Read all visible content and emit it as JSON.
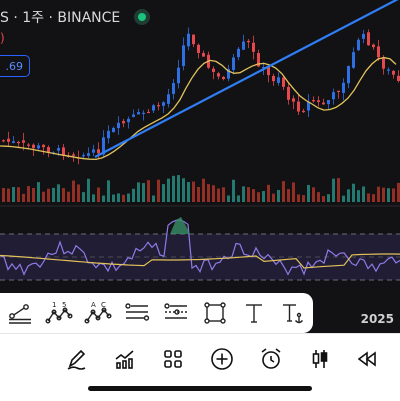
{
  "header": {
    "title": "S · 1주 · BINANCE",
    "change": ")",
    "price_tag": ".69"
  },
  "timeline": {
    "year_label": "2025"
  },
  "drawing_tools": [
    {
      "name": "trend-line-tool",
      "icon": "trend-line-icon"
    },
    {
      "name": "wave-15-tool",
      "icon": "elliott-wave-icon",
      "label_a": "1",
      "label_b": "5"
    },
    {
      "name": "pattern-ac-tool",
      "icon": "abcd-pattern-icon",
      "label_a": "A",
      "label_b": "C"
    },
    {
      "name": "fib-retracement-tool",
      "icon": "fib-retracement-icon"
    },
    {
      "name": "fib-channel-tool",
      "icon": "fib-channel-icon"
    },
    {
      "name": "rectangle-tool",
      "icon": "rectangle-icon"
    },
    {
      "name": "text-tool",
      "icon": "text-icon"
    },
    {
      "name": "anchored-text-tool",
      "icon": "anchored-text-icon"
    }
  ],
  "bottom_tools": [
    {
      "name": "draw-pen-button",
      "icon": "pen-icon"
    },
    {
      "name": "indicators-button",
      "icon": "chart-indicator-icon"
    },
    {
      "name": "layouts-button",
      "icon": "grid-icon"
    },
    {
      "name": "add-button",
      "icon": "plus-circle-icon"
    },
    {
      "name": "alert-button",
      "icon": "alarm-clock-icon"
    },
    {
      "name": "chart-type-button",
      "icon": "candlestick-icon"
    },
    {
      "name": "replay-button",
      "icon": "rewind-icon"
    }
  ],
  "colors": {
    "bull": "#2f6fe4",
    "bear": "#e5484d",
    "ma": "#e2c25b",
    "trendline": "#2f7ef5",
    "rsi": "#8f7ae8",
    "rsi_ma": "#e2c25b",
    "rsi_band": "#2a2440"
  }
}
